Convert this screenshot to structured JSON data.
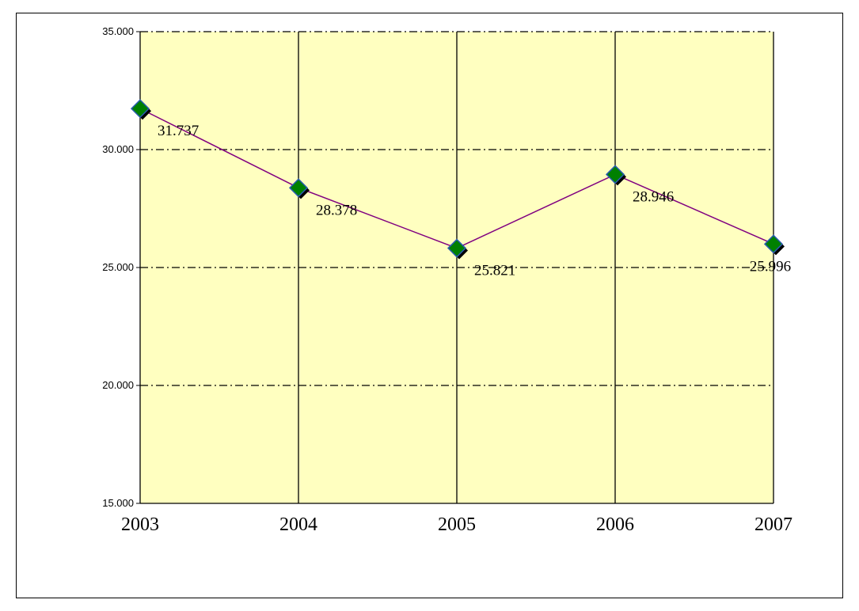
{
  "chart_data": {
    "type": "line",
    "title": "",
    "xlabel": "",
    "ylabel": "",
    "categories": [
      "2003",
      "2004",
      "2005",
      "2006",
      "2007"
    ],
    "series": [
      {
        "values": [
          31737,
          28378,
          25821,
          28946,
          25996
        ],
        "labels": [
          "31.737",
          "28.378",
          "25.821",
          "28.946",
          "25.996"
        ]
      }
    ],
    "ylim": [
      15000,
      35000
    ],
    "yticks": [
      15000,
      20000,
      25000,
      30000,
      35000
    ],
    "ytick_labels": [
      "15.000",
      "20.000",
      "25.000",
      "30.000",
      "35.000"
    ],
    "grid": true,
    "legend": "none",
    "colors": {
      "plot_background": "#ffffc0",
      "line": "#800080",
      "marker_fill": "#008000",
      "marker_edge": "#2a5db0",
      "marker_shadow": "#000000"
    }
  }
}
